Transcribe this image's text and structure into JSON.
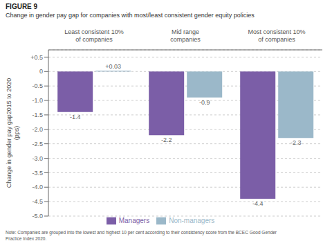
{
  "chart_data": {
    "type": "bar",
    "title": "Change in gender pay gap for companies with most/least consistent gender equity policies",
    "annotations": [
      "FIGURE 9",
      "Note: Companies are grouped into the lowest and highest 10 per cent according to their consistency score from the BCEC Good Gender\nPractice Index 2020."
    ],
    "y_label": "Change in gender pay gap2015 to 2020\n(pps)",
    "categories": [
      "Least consistent 10%\nof companies",
      "Mid range\ncompanies",
      "Most consistent 10%\nof companies"
    ],
    "series": [
      {
        "name": "Managers",
        "color": "#7B5EA7",
        "values": [
          -1.4,
          -2.2,
          -4.4
        ]
      },
      {
        "name": "Non-managers",
        "color": "#9BB8C9",
        "values": [
          0.03,
          -0.9,
          -2.3
        ],
        "value_labels": [
          "+0.03",
          "-0.9",
          "-2.3"
        ]
      }
    ],
    "ylim": [
      -5.0,
      0.75
    ],
    "yticks": [
      {
        "value": 0.5,
        "label": "+0.5"
      },
      0,
      -0.5,
      {
        "value": -1.0,
        "label": "-1.0"
      },
      -1.5,
      {
        "value": -2.0,
        "label": "-2.0"
      },
      -2.5,
      {
        "value": -3.0,
        "label": "-3.0"
      },
      -3.5,
      {
        "value": -4.0,
        "label": "-4.0"
      },
      -4.5,
      {
        "value": -5.0,
        "label": "-5.0"
      }
    ],
    "grid": true,
    "legend": "bottom",
    "data_labels": true
  }
}
